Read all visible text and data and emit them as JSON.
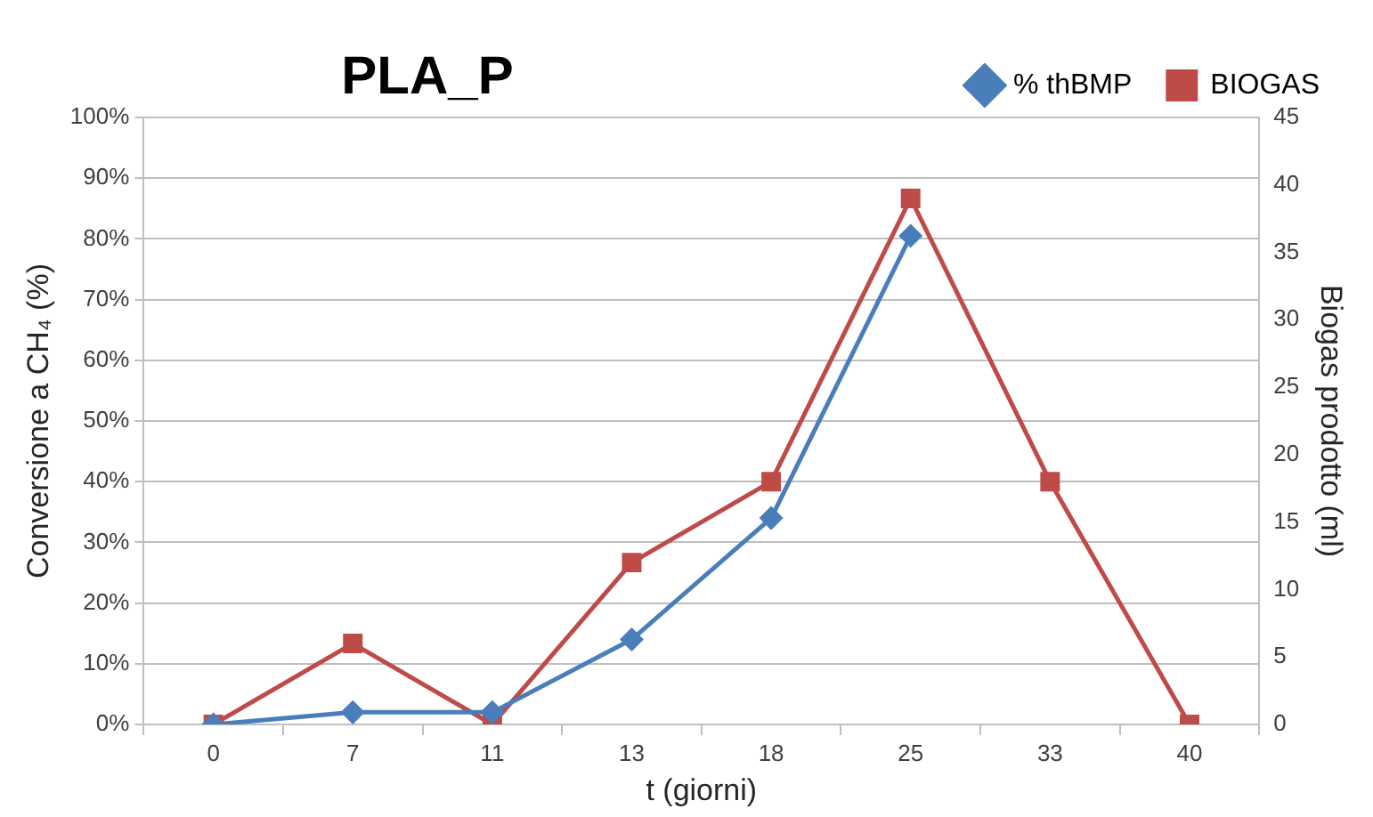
{
  "chart_data": {
    "type": "line",
    "title": "PLA_P",
    "xlabel": "t (giorni)",
    "ylabel": "Conversione a CH₄ (%)",
    "y2label": "Biogas prodotto (ml)",
    "categories": [
      "0",
      "7",
      "11",
      "13",
      "18",
      "25",
      "33",
      "40"
    ],
    "series": [
      {
        "name": "% thBMP",
        "color": "#4a7ebb",
        "marker": "diamond",
        "values": [
          0,
          2,
          2,
          14,
          34,
          80.5,
          null,
          null
        ]
      },
      {
        "name": "BIOGAS",
        "color": "#be4b48",
        "marker": "square",
        "axis": "y2",
        "values": [
          0,
          6,
          0,
          12,
          18,
          39,
          18,
          0
        ]
      }
    ],
    "ylim": [
      0,
      100
    ],
    "yticks": [
      {
        "value": 0,
        "label": "0%"
      },
      {
        "value": 10,
        "label": "10%"
      },
      {
        "value": 20,
        "label": "20%"
      },
      {
        "value": 30,
        "label": "30%"
      },
      {
        "value": 40,
        "label": "40%"
      },
      {
        "value": 50,
        "label": "50%"
      },
      {
        "value": 60,
        "label": "60%"
      },
      {
        "value": 70,
        "label": "70%"
      },
      {
        "value": 80,
        "label": "80%"
      },
      {
        "value": 90,
        "label": "90%"
      },
      {
        "value": 100,
        "label": "100%"
      }
    ],
    "y2lim": [
      0,
      45
    ],
    "y2ticks": [
      0,
      5,
      10,
      15,
      20,
      25,
      30,
      35,
      40,
      45
    ],
    "grid": "y",
    "legend": "top right"
  }
}
